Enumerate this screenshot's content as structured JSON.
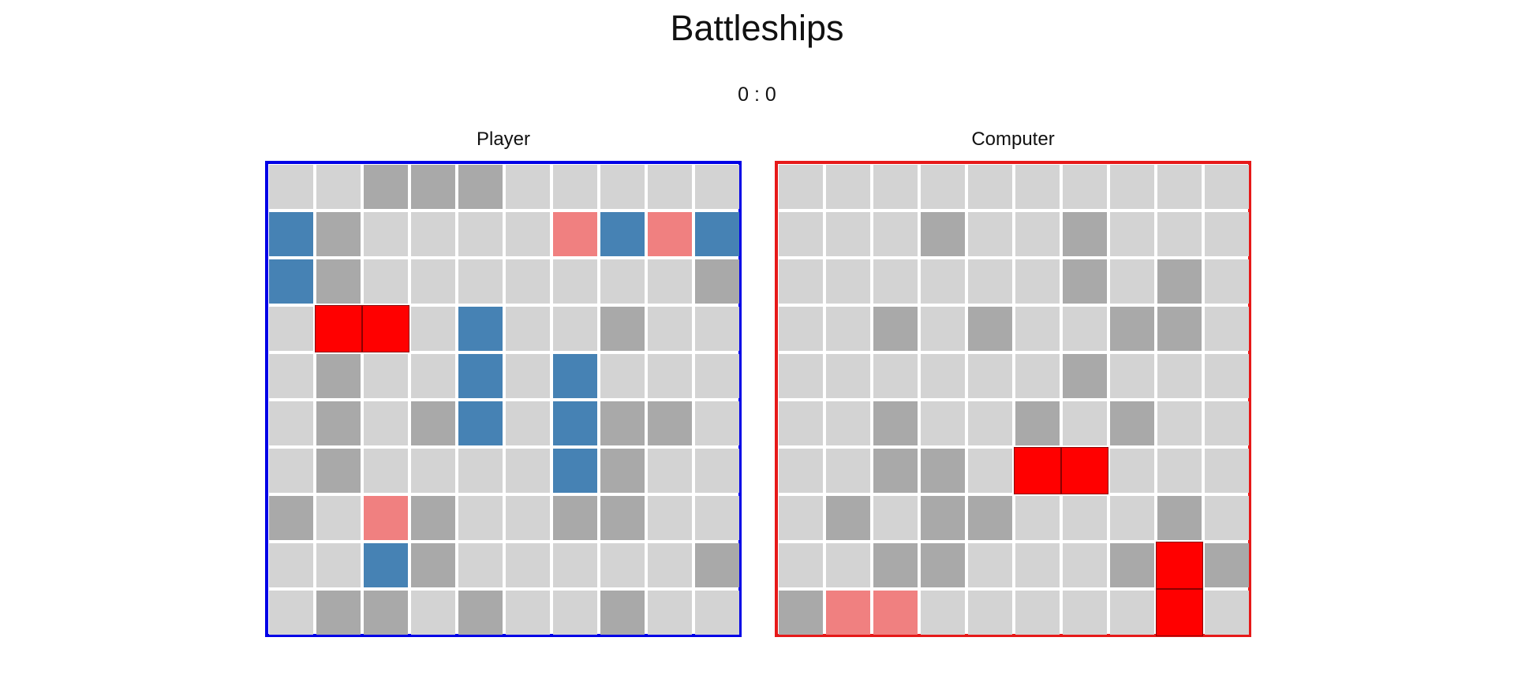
{
  "title": "Battleships",
  "score": "0 : 0",
  "colors": {
    "player_border": "#0000e6",
    "computer_border": "#e61919",
    "empty": "#d3d3d3",
    "miss": "#a9a9a9",
    "ship": "#4682b4",
    "near": "#f08080",
    "sunk": "#ff0000"
  },
  "boards": {
    "player": {
      "label": "Player",
      "grid": [
        [
          "empty",
          "empty",
          "miss",
          "miss",
          "miss",
          "empty",
          "empty",
          "empty",
          "empty",
          "empty"
        ],
        [
          "ship",
          "miss",
          "empty",
          "empty",
          "empty",
          "empty",
          "near",
          "ship",
          "near",
          "ship"
        ],
        [
          "ship",
          "miss",
          "empty",
          "empty",
          "empty",
          "empty",
          "empty",
          "empty",
          "empty",
          "miss"
        ],
        [
          "empty",
          "sunk",
          "sunk",
          "empty",
          "ship",
          "empty",
          "empty",
          "miss",
          "empty",
          "empty"
        ],
        [
          "empty",
          "miss",
          "empty",
          "empty",
          "ship",
          "empty",
          "ship",
          "empty",
          "empty",
          "empty"
        ],
        [
          "empty",
          "miss",
          "empty",
          "miss",
          "ship",
          "empty",
          "ship",
          "miss",
          "miss",
          "empty"
        ],
        [
          "empty",
          "miss",
          "empty",
          "empty",
          "empty",
          "empty",
          "ship",
          "miss",
          "empty",
          "empty"
        ],
        [
          "miss",
          "empty",
          "near",
          "miss",
          "empty",
          "empty",
          "miss",
          "miss",
          "empty",
          "empty"
        ],
        [
          "empty",
          "empty",
          "ship",
          "miss",
          "empty",
          "empty",
          "empty",
          "empty",
          "empty",
          "miss"
        ],
        [
          "empty",
          "miss",
          "miss",
          "empty",
          "miss",
          "empty",
          "empty",
          "miss",
          "empty",
          "empty"
        ]
      ]
    },
    "computer": {
      "label": "Computer",
      "grid": [
        [
          "empty",
          "empty",
          "empty",
          "empty",
          "empty",
          "empty",
          "empty",
          "empty",
          "empty",
          "empty"
        ],
        [
          "empty",
          "empty",
          "empty",
          "miss",
          "empty",
          "empty",
          "miss",
          "empty",
          "empty",
          "empty"
        ],
        [
          "empty",
          "empty",
          "empty",
          "empty",
          "empty",
          "empty",
          "miss",
          "empty",
          "miss",
          "empty"
        ],
        [
          "empty",
          "empty",
          "miss",
          "empty",
          "miss",
          "empty",
          "empty",
          "miss",
          "miss",
          "empty"
        ],
        [
          "empty",
          "empty",
          "empty",
          "empty",
          "empty",
          "empty",
          "miss",
          "empty",
          "empty",
          "empty"
        ],
        [
          "empty",
          "empty",
          "miss",
          "empty",
          "empty",
          "miss",
          "empty",
          "miss",
          "empty",
          "empty"
        ],
        [
          "empty",
          "empty",
          "miss",
          "miss",
          "empty",
          "sunk",
          "sunk",
          "empty",
          "empty",
          "empty"
        ],
        [
          "empty",
          "miss",
          "empty",
          "miss",
          "miss",
          "empty",
          "empty",
          "empty",
          "miss",
          "empty"
        ],
        [
          "empty",
          "empty",
          "miss",
          "miss",
          "empty",
          "empty",
          "empty",
          "miss",
          "sunk",
          "miss"
        ],
        [
          "miss",
          "near",
          "near",
          "empty",
          "empty",
          "empty",
          "empty",
          "empty",
          "sunk",
          "empty"
        ]
      ]
    }
  }
}
